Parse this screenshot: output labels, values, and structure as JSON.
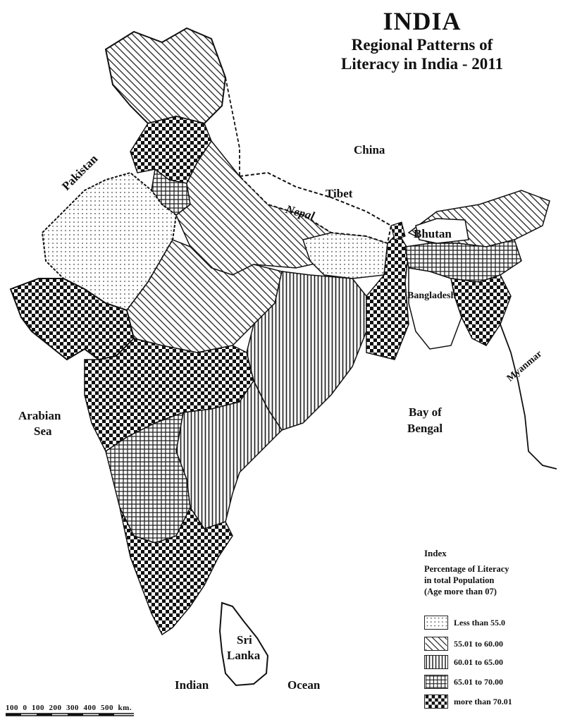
{
  "title": {
    "main": "INDIA",
    "line1": "Regional Patterns of",
    "line2": "Literacy in India - 2011"
  },
  "labels": {
    "pakistan": "Pakistan",
    "china": "China",
    "tibet": "Tibet",
    "nepal": "Nepal",
    "bhutan": "Bhutan",
    "bangladesh": "Bangladesh",
    "myanmar": "Myanmar",
    "arabian_sea_1": "Arabian",
    "arabian_sea_2": "Sea",
    "bay_of_bengal_1": "Bay of",
    "bay_of_bengal_2": "Bengal",
    "sri_lanka_1": "Sri",
    "sri_lanka_2": "Lanka",
    "indian": "Indian",
    "ocean": "Ocean"
  },
  "legend": {
    "heading": "Index",
    "sub1": "Percentage of Literacy",
    "sub2": "in total Population",
    "sub3": "(Age more than 07)",
    "items": [
      {
        "label": "Less than 55.0",
        "pattern": "dots"
      },
      {
        "label": "55.01 to 60.00",
        "pattern": "diagonal"
      },
      {
        "label": "60.01 to 65.00",
        "pattern": "vertical"
      },
      {
        "label": "65.01 to 70.00",
        "pattern": "grid"
      },
      {
        "label": "more than 70.01",
        "pattern": "checker"
      }
    ]
  },
  "scale": {
    "text": "100  0  100  200  300  400  500  km."
  }
}
